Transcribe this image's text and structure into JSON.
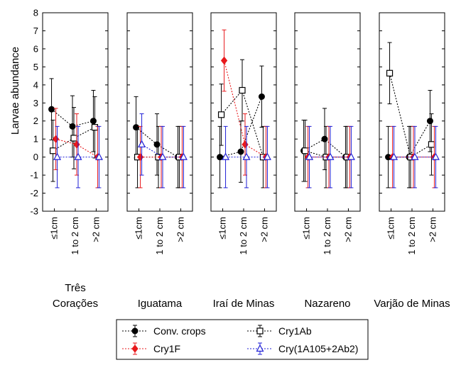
{
  "chart_data": {
    "type": "line",
    "ylabel": "Larvae abundance",
    "ylim": [
      -3,
      8
    ],
    "yticks": [
      -3,
      -2,
      -1,
      0,
      1,
      2,
      3,
      4,
      5,
      6,
      7,
      8
    ],
    "categories": [
      "≤1cm",
      "1 to 2 cm",
      ">2 cm"
    ],
    "series_styles": [
      {
        "name": "Conv. crops",
        "color": "#000000",
        "marker": "filled-circle"
      },
      {
        "name": "Cry1Ab",
        "color": "#000000",
        "marker": "open-square"
      },
      {
        "name": "Cry1F",
        "color": "#e8191c",
        "marker": "filled-diamond"
      },
      {
        "name": "Cry(1A105+2Ab2)",
        "color": "#1f1fd6",
        "marker": "open-triangle"
      }
    ],
    "panels": [
      {
        "site_lines": [
          "Três",
          "Corações"
        ],
        "series": [
          {
            "name": "Conv. crops",
            "values": [
              2.65,
              1.7,
              2.0
            ],
            "err": [
              1.7,
              1.7,
              1.7
            ]
          },
          {
            "name": "Cry1Ab",
            "values": [
              0.35,
              1.05,
              1.65
            ],
            "err": [
              1.7,
              1.7,
              1.7
            ]
          },
          {
            "name": "Cry1F",
            "values": [
              1.0,
              0.7,
              0.0
            ],
            "err": [
              1.7,
              1.7,
              1.7
            ]
          },
          {
            "name": "Cry(1A105+2Ab2)",
            "values": [
              0.0,
              0.0,
              0.0
            ],
            "err": [
              1.7,
              1.7,
              1.7
            ]
          }
        ]
      },
      {
        "site_lines": [
          "Iguatama"
        ],
        "series": [
          {
            "name": "Conv. crops",
            "values": [
              1.65,
              0.7,
              0.0
            ],
            "err": [
              1.7,
              1.7,
              1.7
            ]
          },
          {
            "name": "Cry1Ab",
            "values": [
              0.0,
              0.0,
              0.0
            ],
            "err": [
              1.7,
              1.7,
              1.7
            ]
          },
          {
            "name": "Cry1F",
            "values": [
              0.0,
              0.0,
              0.0
            ],
            "err": [
              1.7,
              1.7,
              1.7
            ]
          },
          {
            "name": "Cry(1A105+2Ab2)",
            "values": [
              0.7,
              0.0,
              0.0
            ],
            "err": [
              1.7,
              1.7,
              1.7
            ]
          }
        ]
      },
      {
        "site_lines": [
          "Iraí de Minas"
        ],
        "series": [
          {
            "name": "Conv. crops",
            "values": [
              0.0,
              0.3,
              3.35
            ],
            "err": [
              1.7,
              1.7,
              1.7
            ]
          },
          {
            "name": "Cry1Ab",
            "values": [
              2.35,
              3.7,
              0.0
            ],
            "err": [
              1.7,
              1.7,
              1.7
            ]
          },
          {
            "name": "Cry1F",
            "values": [
              5.35,
              0.7,
              0.0
            ],
            "err": [
              1.7,
              1.7,
              1.7
            ]
          },
          {
            "name": "Cry(1A105+2Ab2)",
            "values": [
              0.0,
              0.0,
              0.0
            ],
            "err": [
              1.7,
              1.7,
              1.7
            ]
          }
        ]
      },
      {
        "site_lines": [
          "Nazareno"
        ],
        "series": [
          {
            "name": "Conv. crops",
            "values": [
              0.35,
              1.0,
              0.0
            ],
            "err": [
              1.7,
              1.7,
              1.7
            ]
          },
          {
            "name": "Cry1Ab",
            "values": [
              0.35,
              0.0,
              0.0
            ],
            "err": [
              1.7,
              1.7,
              1.7
            ]
          },
          {
            "name": "Cry1F",
            "values": [
              0.0,
              0.0,
              0.0
            ],
            "err": [
              1.7,
              1.7,
              1.7
            ]
          },
          {
            "name": "Cry(1A105+2Ab2)",
            "values": [
              0.0,
              0.0,
              0.0
            ],
            "err": [
              1.7,
              1.7,
              1.7
            ]
          }
        ]
      },
      {
        "site_lines": [
          "Varjão de Minas"
        ],
        "series": [
          {
            "name": "Conv. crops",
            "values": [
              0.0,
              0.0,
              2.0
            ],
            "err": [
              1.7,
              1.7,
              1.7
            ]
          },
          {
            "name": "Cry1Ab",
            "values": [
              4.65,
              0.0,
              0.7
            ],
            "err": [
              1.7,
              1.7,
              1.7
            ]
          },
          {
            "name": "Cry1F",
            "values": [
              0.0,
              0.0,
              0.0
            ],
            "err": [
              1.7,
              1.7,
              1.7
            ]
          },
          {
            "name": "Cry(1A105+2Ab2)",
            "values": [
              0.0,
              0.0,
              0.0
            ],
            "err": [
              1.7,
              1.7,
              1.7
            ]
          }
        ]
      }
    ],
    "legend": {
      "position": "bottom-center",
      "entries": [
        "Conv. crops",
        "Cry1Ab",
        "Cry1F",
        "Cry(1A105+2Ab2)"
      ]
    },
    "grid": false
  }
}
